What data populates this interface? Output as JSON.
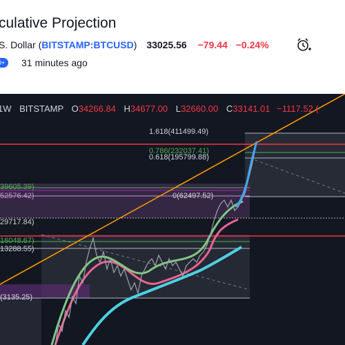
{
  "header": {
    "title": "culative Projection",
    "symbol_prefix": "S. Dollar (",
    "symbol_link": "BITSTAMP:BTCUSD",
    "symbol_suffix": ")",
    "price": "33025.56",
    "change": "−79.44",
    "change_pct": "−0.24%",
    "badge": "0+",
    "time_ago": "31 minutes ago"
  },
  "legend": {
    "timeframe": "1W",
    "exchange": "BITSTAMP",
    "o_label": "O",
    "o_value": "34266.84",
    "h_label": "H",
    "h_value": "34677.00",
    "l_label": "L",
    "l_value": "32660.00",
    "c_label": "C",
    "c_value": "33141.01",
    "change": "−1117.52 ("
  },
  "fib_labels": {
    "f1618": "1.618(411499.49)",
    "f0786": "0.786(232037.41)",
    "f0618": "0.618(195799.88)",
    "f0": "0(62497.52)",
    "left1": "39605.39)",
    "left2": "52576.42)",
    "left3": "29717.84)",
    "left4": "16048.67)",
    "left5": "13288.55)",
    "left6": "(3135.25)"
  },
  "colors": {
    "background": "#131722",
    "red_line": "#f23645",
    "trend_line": "#ff9800",
    "ma_cyan": "#4dd0e1",
    "ma_pink": "#f06292",
    "ma_green": "#81c784"
  }
}
